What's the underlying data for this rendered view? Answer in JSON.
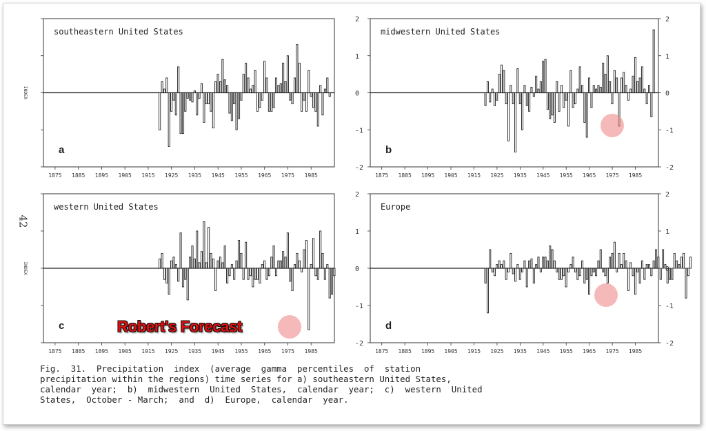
{
  "page_number": "42",
  "forecast_label": "Robert's Forecast",
  "caption": "Fig.  31.  Precipitation  index  (average  gamma  percentiles  of  station\nprecipitation within the regions) time series for a) southeastern United States,\ncalendar  year;  b)  midwestern  United  States,  calendar  year;  c)  western  United\nStates,  October - March;  and  d)  Europe,  calendar  year.",
  "colors": {
    "bar_fill": "#ffffff",
    "bar_stroke": "#222222",
    "highlight": "#f08a8a"
  },
  "chart_data": [
    {
      "type": "bar",
      "panel": "a",
      "title": "southeastern United States",
      "ylabel": "INDEX",
      "ylim": [
        -2,
        2
      ],
      "x_ticks": [
        "1875",
        "1885",
        "1895",
        "1905",
        "1915",
        "1925",
        "1935",
        "1945",
        "1955",
        "1965",
        "1975",
        "1985"
      ],
      "y_ticks_right": [],
      "start_year": 1920,
      "values": [
        -1.0,
        0.3,
        0.1,
        0.4,
        -1.45,
        -0.5,
        -0.2,
        -0.6,
        0.7,
        -1.1,
        -1.1,
        -0.5,
        -0.15,
        -0.2,
        -0.25,
        0.05,
        -0.6,
        -0.15,
        0.25,
        -0.8,
        -0.3,
        -0.3,
        -0.5,
        -0.95,
        0.3,
        0.5,
        0.3,
        0.9,
        0.35,
        0.2,
        -0.55,
        -0.75,
        -0.3,
        -1.0,
        -0.7,
        -0.2,
        0.5,
        0.8,
        0.4,
        0.1,
        0.2,
        0.6,
        -0.5,
        -0.4,
        -0.2,
        0.85,
        0.4,
        -0.5,
        -0.5,
        -0.4,
        0.4,
        0.2,
        0.25,
        0.8,
        0.3,
        1.0,
        -0.2,
        -0.3,
        0.4,
        1.3,
        0.8,
        -0.5,
        -0.2,
        -0.5,
        0.6,
        -0.1,
        -0.4,
        -0.5,
        -0.9,
        0.2,
        -0.6,
        0.1,
        0.4,
        -0.1
      ]
    },
    {
      "type": "bar",
      "panel": "b",
      "title": "midwestern United States",
      "ylabel": "",
      "ylim": [
        -2,
        2
      ],
      "x_ticks": [
        "1875",
        "1885",
        "1895",
        "1905",
        "1915",
        "1925",
        "1935",
        "1945",
        "1955",
        "1965",
        "1975",
        "1985"
      ],
      "y_ticks_right": [
        "2",
        "1",
        "0",
        "-1",
        "-2"
      ],
      "start_year": 1920,
      "values": [
        -0.35,
        0.3,
        -0.25,
        0.1,
        -0.35,
        -0.2,
        0.5,
        0.75,
        0.6,
        -0.3,
        -1.3,
        0.2,
        -0.3,
        -1.6,
        0.65,
        -0.3,
        -1.0,
        0.2,
        -0.35,
        -0.5,
        0.15,
        -0.1,
        0.45,
        0.1,
        0.3,
        0.85,
        0.9,
        -0.45,
        -0.7,
        -0.6,
        -0.8,
        0.3,
        -0.5,
        0.2,
        -0.4,
        -0.2,
        -0.9,
        0.6,
        -0.4,
        -0.3,
        0.1,
        0.7,
        0.2,
        -0.8,
        -1.2,
        0.4,
        -0.4,
        0.2,
        0.1,
        0.2,
        0.15,
        0.8,
        0.5,
        1.0,
        0.3,
        -0.3,
        0.6,
        0.4,
        -0.9,
        0.4,
        0.55,
        0.2,
        -0.2,
        0.1,
        0.45,
        0.95,
        0.3,
        0.4,
        0.7,
        0.1,
        -0.3,
        0.2,
        -0.65,
        1.7
      ]
    },
    {
      "type": "bar",
      "panel": "c",
      "title": "western United States",
      "ylabel": "INDEX",
      "ylim": [
        -2,
        2
      ],
      "x_ticks": [
        "1875",
        "1885",
        "1895",
        "1905",
        "1915",
        "1925",
        "1935",
        "1945",
        "1955",
        "1965",
        "1975",
        "1985"
      ],
      "y_ticks_right": [],
      "start_year": 1920,
      "values": [
        0.25,
        0.4,
        -0.3,
        -0.4,
        -0.7,
        0.2,
        0.3,
        0.1,
        -0.35,
        0.95,
        -0.5,
        -0.3,
        -0.85,
        0.3,
        0.6,
        0.25,
        1.0,
        0.15,
        0.45,
        1.25,
        0.15,
        1.1,
        0.4,
        0.25,
        -0.6,
        0.2,
        0.3,
        0.15,
        0.6,
        -0.4,
        -0.2,
        0.1,
        -0.3,
        0.2,
        0.75,
        0.4,
        -0.3,
        0.7,
        -0.3,
        -0.2,
        -0.5,
        -0.3,
        -0.3,
        -0.4,
        0.1,
        0.2,
        -0.3,
        -0.2,
        0.3,
        0.6,
        -0.2,
        0.2,
        0.2,
        0.45,
        0.3,
        0.95,
        -0.35,
        -0.6,
        0.1,
        0.4,
        0.2,
        -0.1,
        0.5,
        0.75,
        -1.65,
        0.1,
        0.8,
        -0.2,
        -0.3,
        1.0,
        0.4,
        -0.3,
        0.1,
        -0.8,
        -0.7,
        -0.2
      ]
    },
    {
      "type": "bar",
      "panel": "d",
      "title": "Europe",
      "ylabel": "",
      "ylim": [
        -2,
        2
      ],
      "x_ticks": [
        "1875",
        "1885",
        "1895",
        "1905",
        "1915",
        "1925",
        "1935",
        "1945",
        "1955",
        "1965",
        "1975",
        "1985"
      ],
      "y_ticks_right": [
        "2",
        "1",
        "0",
        "-1",
        "-2"
      ],
      "start_year": 1920,
      "values": [
        -0.4,
        -1.2,
        0.5,
        -0.1,
        -0.2,
        0.1,
        0.2,
        0.1,
        0.2,
        -0.3,
        -0.1,
        0.4,
        -0.15,
        -0.35,
        0.1,
        -0.3,
        -0.1,
        0.2,
        -0.5,
        0.2,
        0.25,
        -0.4,
        0.1,
        0.3,
        -0.1,
        0.3,
        0.3,
        0.2,
        0.6,
        0.5,
        0.2,
        -0.1,
        -0.3,
        -0.3,
        -0.2,
        -0.5,
        -0.1,
        0.1,
        0.3,
        -0.1,
        -0.3,
        -0.2,
        0.2,
        -0.4,
        -0.3,
        -0.7,
        -0.2,
        -0.1,
        -0.2,
        0.2,
        0.5,
        -0.1,
        -0.2,
        -0.4,
        0.3,
        0.4,
        0.7,
        -0.1,
        0.4,
        0.1,
        0.4,
        0.2,
        -0.6,
        0.15,
        -0.2,
        -0.7,
        -0.1,
        -0.4,
        0.2,
        -0.3,
        0.1,
        0.1,
        -0.2,
        0.2,
        0.5,
        0.3,
        -0.3,
        0.5,
        0.1,
        -0.4,
        -0.3,
        -0.3,
        0.4,
        0.2,
        0.1,
        0.3,
        0.4,
        -0.8,
        -0.2,
        0.3
      ]
    }
  ]
}
